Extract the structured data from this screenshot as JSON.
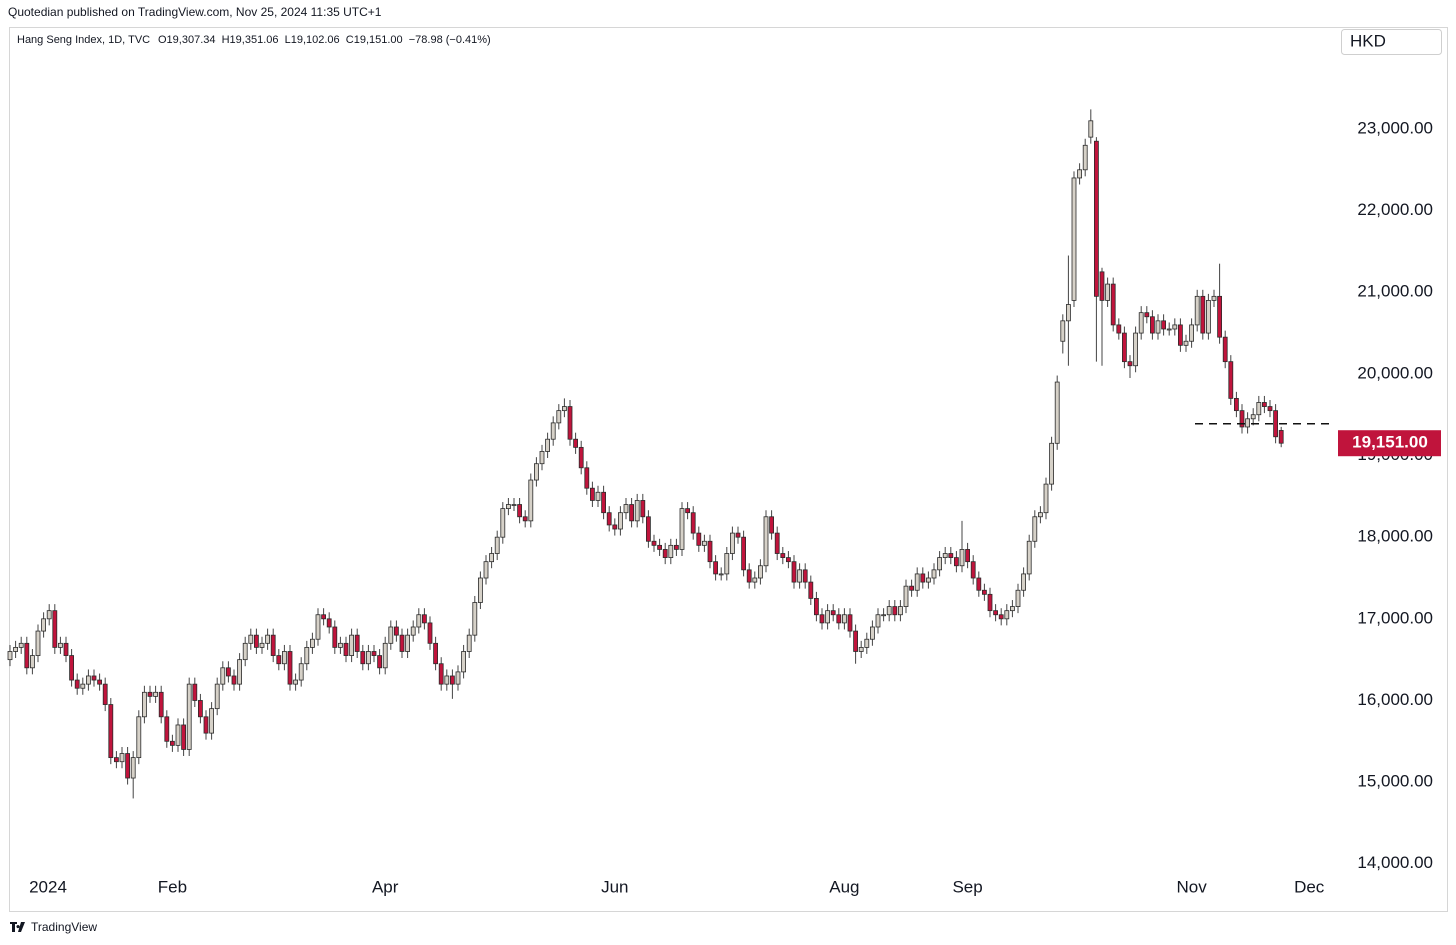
{
  "header": {
    "publisher": "Quotedian published on TradingView.com, Nov 25, 2024 11:35 UTC+1"
  },
  "legend": {
    "symbol": "Hang Seng Index, 1D, TVC",
    "ohlc": "O19,307.34  H19,351.06  L19,102.06  C19,151.00  −78.98 (−0.41%)"
  },
  "currency": "HKD",
  "footer": {
    "brand": "TradingView"
  },
  "chart_data": {
    "type": "candlestick",
    "up_color": "#d6d1c8",
    "down_color": "#c0143c",
    "outline_color": "#2b2b2b",
    "wick_color": "#444444",
    "grid": false,
    "ylim": [
      13850,
      24200
    ],
    "yticks": [
      {
        "value": 14000,
        "label": "14,000.00"
      },
      {
        "value": 15000,
        "label": "15,000.00"
      },
      {
        "value": 16000,
        "label": "16,000.00"
      },
      {
        "value": 17000,
        "label": "17,000.00"
      },
      {
        "value": 18000,
        "label": "18,000.00"
      },
      {
        "value": 19000,
        "label": "19,000.00"
      },
      {
        "value": 20000,
        "label": "20,000.00"
      },
      {
        "value": 21000,
        "label": "21,000.00"
      },
      {
        "value": 22000,
        "label": "22,000.00"
      },
      {
        "value": 23000,
        "label": "23,000.00"
      }
    ],
    "hline": 19390,
    "last_price": {
      "value": 19151,
      "label": "19,151.00"
    },
    "categories": [
      "2024",
      null,
      null,
      null,
      null,
      null,
      null,
      null,
      null,
      null,
      null,
      null,
      null,
      null,
      null,
      null,
      null,
      null,
      null,
      null,
      null,
      null,
      null,
      null,
      null,
      null,
      null,
      null,
      null,
      "Feb",
      null,
      null,
      null,
      null,
      null,
      null,
      null,
      null,
      null,
      null,
      null,
      null,
      null,
      null,
      null,
      null,
      null,
      null,
      null,
      null,
      null,
      null,
      null,
      null,
      null,
      null,
      null,
      null,
      null,
      null,
      null,
      null,
      null,
      null,
      null,
      null,
      null,
      "Apr",
      null,
      null,
      null,
      null,
      null,
      null,
      null,
      null,
      null,
      null,
      null,
      null,
      null,
      null,
      null,
      null,
      null,
      null,
      null,
      null,
      null,
      null,
      null,
      null,
      null,
      null,
      null,
      null,
      null,
      null,
      null,
      null,
      null,
      null,
      null,
      null,
      null,
      null,
      null,
      null,
      "Jun",
      null,
      null,
      null,
      null,
      null,
      null,
      null,
      null,
      null,
      null,
      null,
      null,
      null,
      null,
      null,
      null,
      null,
      null,
      null,
      null,
      null,
      null,
      null,
      null,
      null,
      null,
      null,
      null,
      null,
      null,
      null,
      null,
      null,
      null,
      null,
      null,
      null,
      null,
      null,
      null,
      "Aug",
      null,
      null,
      null,
      null,
      null,
      null,
      null,
      null,
      null,
      null,
      null,
      null,
      null,
      null,
      null,
      null,
      null,
      null,
      null,
      null,
      null,
      "Sep",
      null,
      null,
      null,
      null,
      null,
      null,
      null,
      null,
      null,
      null,
      null,
      null,
      null,
      null,
      null,
      null,
      null,
      null,
      null,
      null,
      null,
      null,
      null,
      null,
      null,
      null,
      null,
      null,
      null,
      null,
      null,
      null,
      null,
      null,
      null,
      null,
      null,
      null,
      null,
      "Nov",
      null,
      null,
      null,
      null,
      null,
      null,
      null,
      null,
      null,
      null,
      null,
      null,
      null,
      null,
      null,
      null,
      null,
      null,
      null,
      null,
      "Dec",
      null,
      null,
      null,
      null
    ],
    "open": [
      16500,
      16600,
      16650,
      16700,
      16400,
      16550,
      16850,
      17000,
      17100,
      16650,
      16700,
      16550,
      16250,
      16150,
      16200,
      16300,
      16250,
      16200,
      15950,
      15300,
      15250,
      15350,
      15050,
      15300,
      15800,
      16100,
      16050,
      16100,
      15800,
      15500,
      15450,
      15700,
      15400,
      16200,
      16000,
      15800,
      15600,
      15900,
      16200,
      16400,
      16300,
      16200,
      16500,
      16700,
      16800,
      16650,
      16700,
      16800,
      16550,
      16450,
      16600,
      16200,
      16250,
      16450,
      16650,
      16750,
      17050,
      17000,
      16900,
      16650,
      16700,
      16550,
      16800,
      16600,
      16450,
      16600,
      16550,
      16400,
      16700,
      16900,
      16800,
      16600,
      16800,
      16900,
      17050,
      16950,
      16700,
      16450,
      16200,
      16300,
      16200,
      16350,
      16600,
      16800,
      17200,
      17500,
      17700,
      17800,
      18000,
      18350,
      18400,
      18400,
      18250,
      18200,
      18700,
      18900,
      19050,
      19200,
      19400,
      19550,
      19600,
      19200,
      19100,
      18850,
      18600,
      18450,
      18550,
      18300,
      18150,
      18100,
      18300,
      18400,
      18200,
      18450,
      18250,
      17950,
      17900,
      17850,
      17750,
      17900,
      17850,
      18350,
      18300,
      18050,
      17900,
      17950,
      17700,
      17550,
      17550,
      17800,
      18050,
      18000,
      17600,
      17450,
      17500,
      17650,
      18250,
      18050,
      17800,
      17750,
      17700,
      17450,
      17600,
      17450,
      17250,
      17050,
      16950,
      17100,
      17050,
      16950,
      17050,
      16850,
      16600,
      16650,
      16750,
      16900,
      17050,
      17050,
      17150,
      17050,
      17150,
      17400,
      17350,
      17550,
      17450,
      17500,
      17600,
      17750,
      17800,
      17750,
      17650,
      17850,
      17700,
      17500,
      17350,
      17300,
      17100,
      17050,
      17000,
      17100,
      17150,
      17350,
      17550,
      17950,
      18250,
      18300,
      18650,
      19150,
      20400,
      20650,
      20900,
      22400,
      22500,
      22900,
      22850,
      21250,
      20900,
      21100,
      20600,
      20500,
      20150,
      20100,
      20500,
      20750,
      20700,
      20500,
      20650,
      20550,
      20550,
      20600,
      20350,
      20400,
      20600,
      20950,
      20500,
      20900,
      20950,
      20450,
      20150,
      19700,
      19550,
      19350,
      19450,
      19500,
      19650,
      19600,
      19550,
      19307.34,
      null,
      null,
      null,
      null,
      null,
      null,
      null,
      null,
      null
    ],
    "high": [
      16680,
      16730,
      16780,
      16780,
      16630,
      16930,
      17080,
      17180,
      17180,
      16780,
      16780,
      16630,
      16330,
      16280,
      16380,
      16380,
      16330,
      16280,
      16030,
      15380,
      15430,
      15430,
      15380,
      15880,
      16180,
      16180,
      16180,
      16180,
      15880,
      15580,
      15780,
      15780,
      16280,
      16280,
      16080,
      15880,
      15980,
      16280,
      16480,
      16480,
      16380,
      16580,
      16780,
      16880,
      16880,
      16780,
      16880,
      16880,
      16630,
      16680,
      16680,
      16330,
      16530,
      16730,
      16830,
      17130,
      17130,
      17080,
      16980,
      16780,
      16780,
      16880,
      16880,
      16680,
      16680,
      16680,
      16630,
      16780,
      16980,
      16980,
      16880,
      16880,
      16980,
      17130,
      17130,
      17030,
      16780,
      16530,
      16380,
      16380,
      16430,
      16680,
      16880,
      17280,
      17580,
      17780,
      17880,
      18080,
      18430,
      18480,
      18480,
      18480,
      18330,
      18780,
      18980,
      19130,
      19280,
      19480,
      19630,
      19700,
      19680,
      19280,
      19180,
      18930,
      18680,
      18630,
      18630,
      18380,
      18230,
      18380,
      18480,
      18480,
      18530,
      18530,
      18330,
      18030,
      17980,
      17930,
      17980,
      17980,
      18430,
      18430,
      18380,
      18130,
      18030,
      18030,
      17780,
      17630,
      17880,
      18130,
      18130,
      18080,
      17680,
      17580,
      17730,
      18330,
      18330,
      18130,
      17880,
      17830,
      17780,
      17680,
      17680,
      17530,
      17330,
      17130,
      17180,
      17180,
      17130,
      17130,
      17130,
      16930,
      16730,
      16830,
      16980,
      17130,
      17130,
      17230,
      17230,
      17230,
      17480,
      17480,
      17630,
      17630,
      17580,
      17680,
      17830,
      17880,
      17880,
      17830,
      18200,
      17930,
      17780,
      17580,
      17430,
      17380,
      17180,
      17130,
      17180,
      17230,
      17430,
      17630,
      18030,
      18330,
      18380,
      18730,
      19230,
      19980,
      20730,
      21450,
      22480,
      22580,
      22880,
      23240,
      22900,
      21300,
      21180,
      21180,
      20680,
      20580,
      20230,
      20580,
      20830,
      20830,
      20780,
      20730,
      20730,
      20630,
      20680,
      20680,
      20480,
      20680,
      21030,
      21030,
      20980,
      21030,
      21350,
      20530,
      20230,
      19780,
      19630,
      19530,
      19580,
      19730,
      19730,
      19680,
      19630,
      19351.06,
      null,
      null,
      null,
      null,
      null,
      null,
      null,
      null,
      null
    ],
    "low": [
      16420,
      16520,
      16570,
      16320,
      16320,
      16470,
      16770,
      16920,
      16570,
      16570,
      16470,
      16170,
      16070,
      16070,
      16120,
      16170,
      16120,
      15870,
      15220,
      15170,
      15170,
      14970,
      14800,
      15220,
      15720,
      15970,
      15970,
      15720,
      15420,
      15370,
      15370,
      15320,
      15320,
      15920,
      15720,
      15520,
      15520,
      15820,
      16120,
      16220,
      16120,
      16120,
      16420,
      16620,
      16570,
      16570,
      16620,
      16470,
      16370,
      16370,
      16120,
      16120,
      16170,
      16370,
      16570,
      16670,
      16920,
      16820,
      16570,
      16570,
      16470,
      16470,
      16520,
      16370,
      16370,
      16470,
      16320,
      16320,
      16620,
      16720,
      16520,
      16520,
      16720,
      16820,
      16870,
      16620,
      16370,
      16120,
      16120,
      16020,
      16120,
      16270,
      16520,
      16720,
      17120,
      17420,
      17620,
      17720,
      17920,
      18270,
      18320,
      18170,
      18120,
      18120,
      18620,
      18820,
      18970,
      19120,
      19320,
      19470,
      19120,
      19020,
      18770,
      18520,
      18370,
      18370,
      18220,
      18070,
      18020,
      18020,
      18220,
      18120,
      18120,
      18170,
      17870,
      17820,
      17770,
      17670,
      17670,
      17770,
      17770,
      18220,
      17970,
      17820,
      17820,
      17620,
      17470,
      17470,
      17470,
      17720,
      17920,
      17520,
      17370,
      17370,
      17420,
      17570,
      17970,
      17720,
      17670,
      17620,
      17370,
      17370,
      17370,
      17170,
      16970,
      16870,
      16870,
      16970,
      16870,
      16870,
      16770,
      16450,
      16520,
      16570,
      16670,
      16820,
      16970,
      16970,
      16970,
      16970,
      17070,
      17270,
      17270,
      17370,
      17370,
      17420,
      17520,
      17670,
      17670,
      17570,
      17570,
      17620,
      17420,
      17270,
      17220,
      17020,
      16970,
      16920,
      16920,
      17020,
      17070,
      17270,
      17470,
      17870,
      18170,
      18220,
      18570,
      19070,
      20250,
      20100,
      20820,
      22320,
      22420,
      22820,
      20150,
      20100,
      20820,
      20520,
      20420,
      20070,
      19950,
      20020,
      20420,
      20620,
      20420,
      20420,
      20470,
      20470,
      20470,
      20270,
      20270,
      20320,
      20520,
      20420,
      20420,
      20820,
      20370,
      20070,
      19620,
      19470,
      19270,
      19270,
      19370,
      19420,
      19520,
      19470,
      19150,
      19102.06,
      null,
      null,
      null,
      null,
      null,
      null,
      null,
      null,
      null
    ],
    "close": [
      16600,
      16650,
      16700,
      16400,
      16550,
      16850,
      17000,
      17100,
      16650,
      16700,
      16550,
      16250,
      16150,
      16200,
      16300,
      16250,
      16200,
      15950,
      15300,
      15250,
      15350,
      15050,
      15300,
      15800,
      16100,
      16050,
      16100,
      15800,
      15500,
      15450,
      15700,
      15400,
      16200,
      16000,
      15800,
      15600,
      15900,
      16200,
      16400,
      16300,
      16200,
      16500,
      16700,
      16800,
      16650,
      16700,
      16800,
      16550,
      16450,
      16600,
      16200,
      16250,
      16450,
      16650,
      16750,
      17050,
      17000,
      16900,
      16650,
      16700,
      16550,
      16800,
      16600,
      16450,
      16600,
      16550,
      16400,
      16700,
      16900,
      16800,
      16600,
      16800,
      16900,
      17050,
      16950,
      16700,
      16450,
      16200,
      16300,
      16200,
      16350,
      16600,
      16800,
      17200,
      17500,
      17700,
      17800,
      18000,
      18350,
      18400,
      18400,
      18250,
      18200,
      18700,
      18900,
      19050,
      19200,
      19400,
      19550,
      19600,
      19200,
      19100,
      18850,
      18600,
      18450,
      18550,
      18300,
      18150,
      18100,
      18300,
      18400,
      18200,
      18450,
      18250,
      17950,
      17900,
      17850,
      17750,
      17900,
      17850,
      18350,
      18300,
      18050,
      17900,
      17950,
      17700,
      17550,
      17550,
      17800,
      18050,
      18000,
      17600,
      17450,
      17500,
      17650,
      18250,
      18050,
      17800,
      17750,
      17700,
      17450,
      17600,
      17450,
      17250,
      17050,
      16950,
      17100,
      17050,
      16950,
      17050,
      16850,
      16600,
      16650,
      16750,
      16900,
      17050,
      17050,
      17150,
      17050,
      17150,
      17400,
      17350,
      17550,
      17450,
      17500,
      17600,
      17750,
      17800,
      17750,
      17650,
      17850,
      17700,
      17500,
      17350,
      17300,
      17100,
      17050,
      17000,
      17100,
      17150,
      17350,
      17550,
      17950,
      18250,
      18300,
      18650,
      19150,
      19900,
      20650,
      20850,
      22400,
      22500,
      22800,
      23100,
      20950,
      20900,
      21100,
      20600,
      20500,
      20150,
      20100,
      20500,
      20750,
      20700,
      20500,
      20650,
      20550,
      20550,
      20600,
      20350,
      20400,
      20600,
      20950,
      20500,
      20900,
      20950,
      20450,
      20150,
      19700,
      19550,
      19350,
      19450,
      19500,
      19650,
      19600,
      19550,
      19229.98,
      19151,
      null,
      null,
      null,
      null,
      null,
      null,
      null,
      null,
      null
    ]
  }
}
